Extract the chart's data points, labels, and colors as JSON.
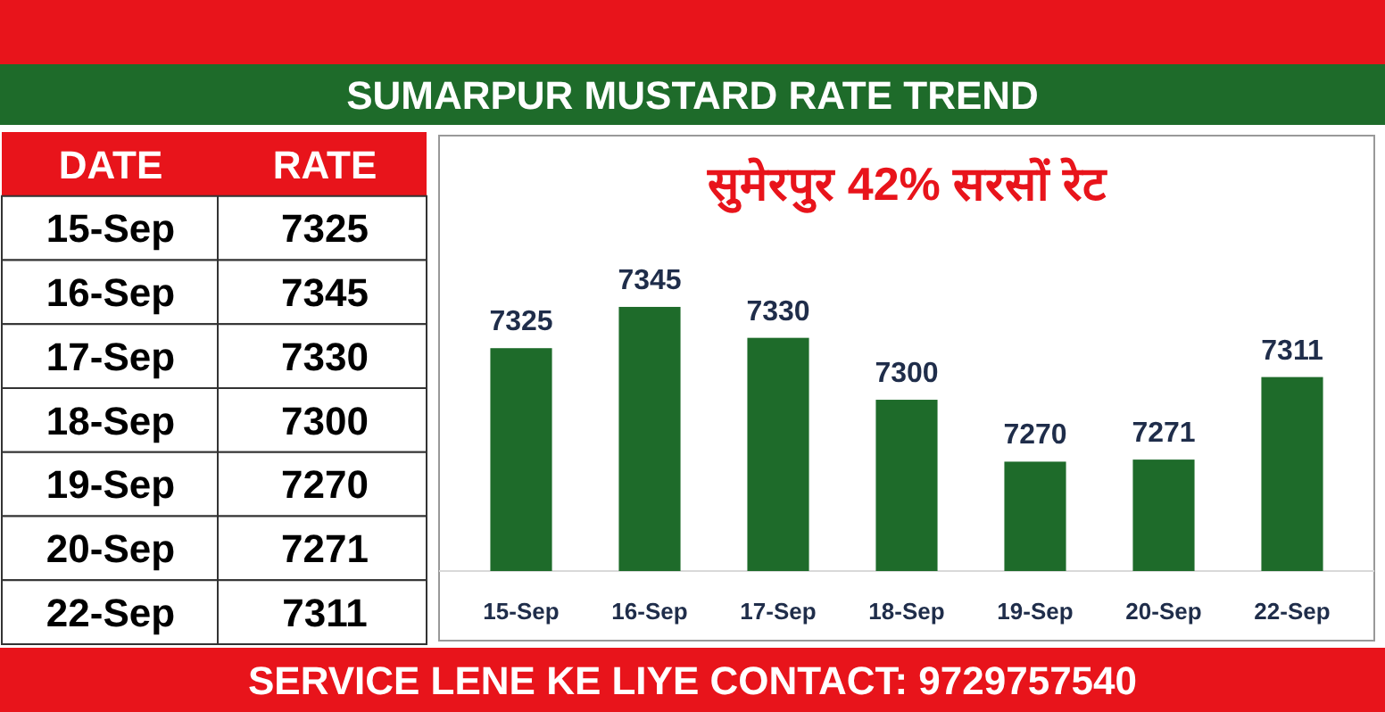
{
  "chart_data": [
    {
      "type": "other",
      "annotations": [
        "DATE",
        "RATE",
        "15-Sep",
        "7325",
        "16-Sep",
        "7345",
        "17-Sep",
        "7330",
        "18-Sep",
        "7300",
        "19-Sep",
        "7270",
        "20-Sep",
        "7271",
        "22-Sep",
        "7311"
      ]
    },
    {
      "type": "bar",
      "title": "सुमेरपुर 42% सरसों रेट",
      "subtitle": "SUMARPUR MUSTARD RATE TREND",
      "categories": [
        "15-Sep",
        "16-Sep",
        "17-Sep",
        "18-Sep",
        "19-Sep",
        "20-Sep",
        "22-Sep"
      ],
      "values": [
        7325,
        7345,
        7330,
        7300,
        7270,
        7271,
        7311
      ],
      "color": "#1e6b2a",
      "ylim": [
        7217,
        7428
      ],
      "data_labels": true,
      "annotations": [
        "SERVICE LENE KE LIYE CONTACT: 9729757540"
      ]
    }
  ]
}
